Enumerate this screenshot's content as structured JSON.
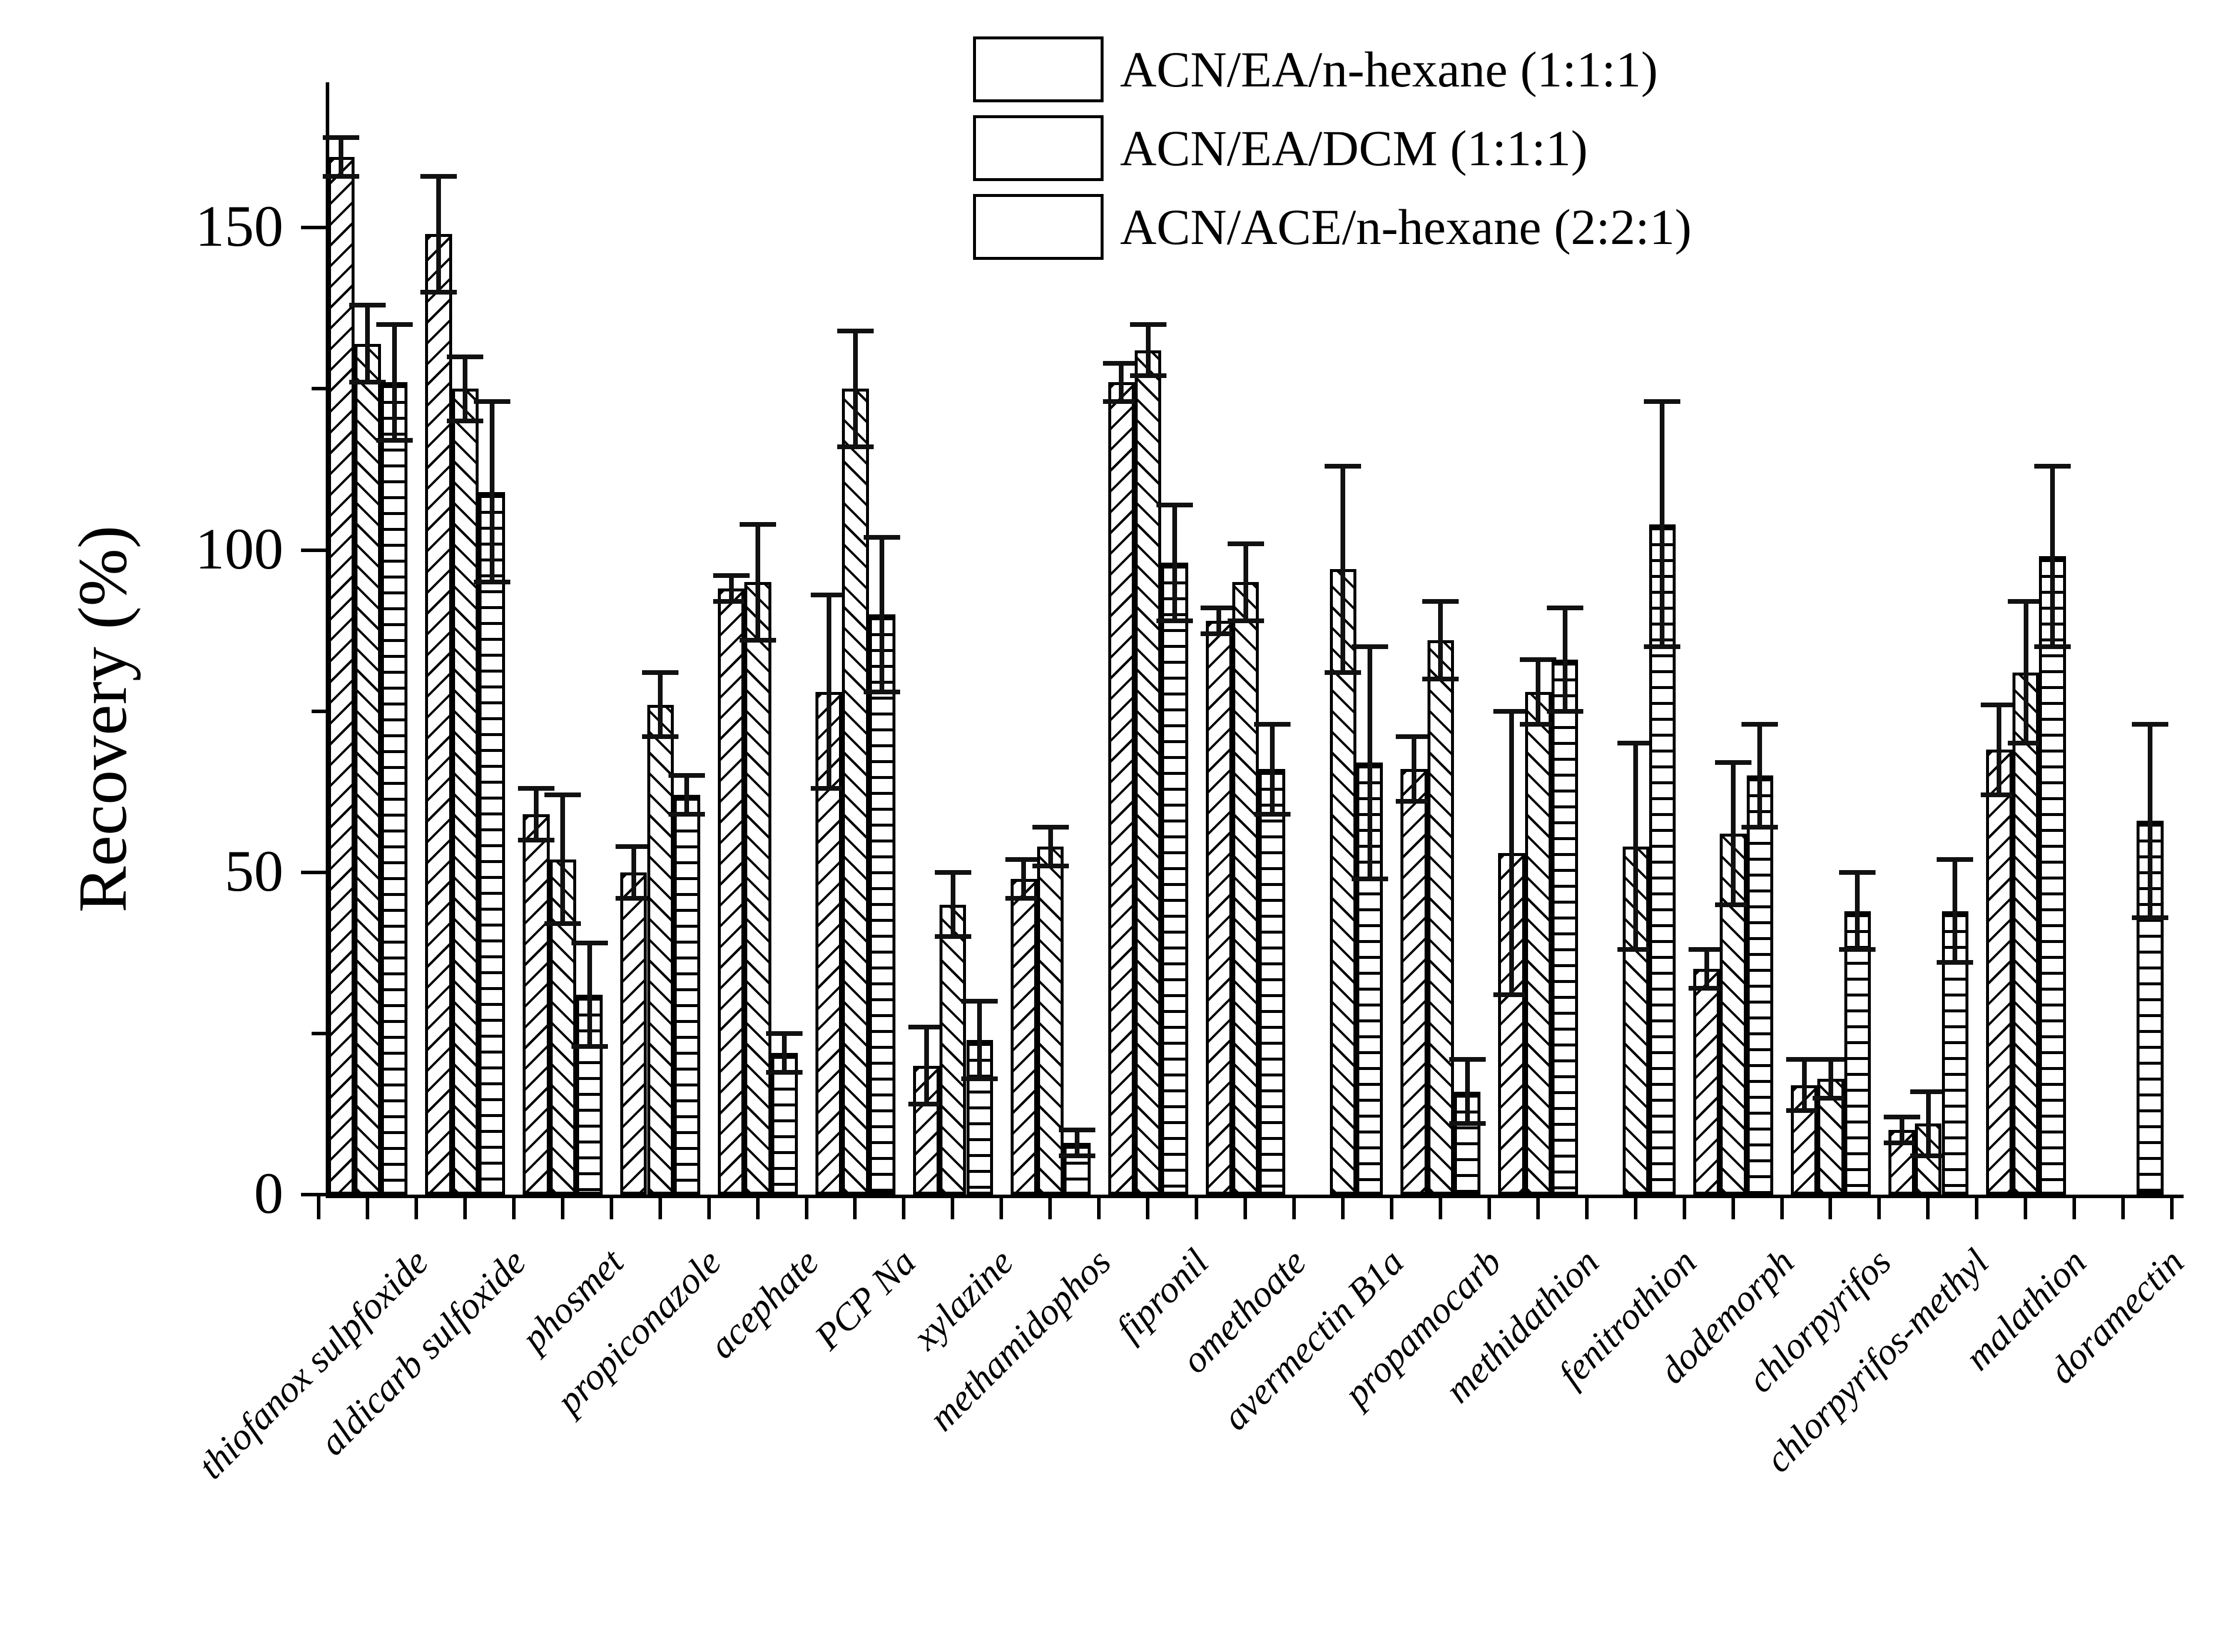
{
  "colors": {
    "background": "#ffffff",
    "line": "#000000",
    "bar_fill": "#ffffff",
    "error_bar": "#111111"
  },
  "icons": {
    "legend_swatch_1": "diagonal-forward-hatch-icon",
    "legend_swatch_2": "diagonal-backward-hatch-icon",
    "legend_swatch_3": "horizontal-lines-hatch-icon"
  },
  "chart_data": {
    "type": "bar",
    "title": "",
    "xlabel": "",
    "ylabel": "Recovery (%)",
    "ylim": [
      0,
      172
    ],
    "yticks": [
      0,
      50,
      100,
      150
    ],
    "yticks_minor": [
      25,
      75,
      125
    ],
    "grid": false,
    "legend_position": "top-center",
    "bar_outline": "black",
    "bar_fill": "white",
    "categories": [
      "thiofanox sulpfoxide",
      "aldicarb sulfoxide",
      "phosmet",
      "propiconazole",
      "acephate",
      "PCP Na",
      "xylazine",
      "methamidophos",
      "fipronil",
      "omethoate",
      "avermectin B1a",
      "propamocarb",
      "methidathion",
      "fenitrothion",
      "dodemorph",
      "chlorpyrifos",
      "chlorpyrifos-methyl",
      "malathion",
      "doramectin"
    ],
    "series": [
      {
        "name": "ACN/EA/n-hexane (1:1:1)",
        "pattern": "diagonal-forward",
        "values": [
          161,
          149,
          59,
          50,
          94,
          78,
          20,
          49,
          126,
          89,
          null,
          66,
          53,
          null,
          35,
          17,
          10,
          69,
          null
        ],
        "errors": [
          3,
          9,
          4,
          4,
          2,
          15,
          6,
          3,
          3,
          2,
          null,
          5,
          22,
          null,
          3,
          4,
          2,
          7,
          null
        ]
      },
      {
        "name": "ACN/EA/DCM (1:1:1)",
        "pattern": "diagonal-backward",
        "values": [
          132,
          125,
          52,
          76,
          95,
          125,
          45,
          54,
          131,
          95,
          97,
          86,
          78,
          54,
          56,
          18,
          11,
          81,
          null
        ],
        "errors": [
          6,
          5,
          10,
          5,
          9,
          9,
          5,
          3,
          4,
          6,
          16,
          6,
          5,
          16,
          11,
          3,
          5,
          11,
          null
        ]
      },
      {
        "name": "ACN/ACE/n-hexane (2:2:1)",
        "pattern": "horizontal-lines",
        "values": [
          126,
          109,
          31,
          62,
          22,
          90,
          24,
          8,
          98,
          66,
          67,
          16,
          83,
          104,
          65,
          44,
          44,
          99,
          58
        ],
        "errors": [
          9,
          14,
          8,
          3,
          3,
          12,
          6,
          2,
          9,
          7,
          18,
          5,
          8,
          19,
          8,
          6,
          8,
          14,
          15
        ]
      }
    ]
  }
}
